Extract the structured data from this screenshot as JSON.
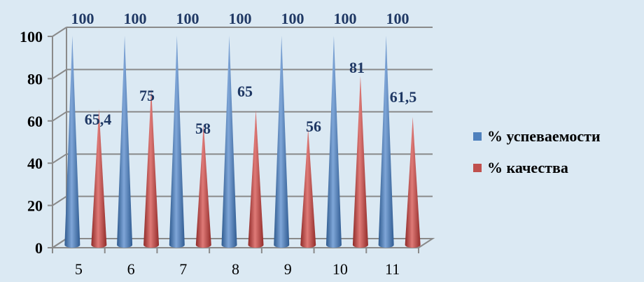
{
  "chart_data": {
    "type": "bar",
    "title": "",
    "xlabel": "",
    "ylabel": "",
    "categories": [
      "5",
      "6",
      "7",
      "8",
      "9",
      "10",
      "11"
    ],
    "ylim": [
      0,
      100
    ],
    "yticks": [
      0,
      20,
      40,
      60,
      80,
      100
    ],
    "grid": true,
    "legend_position": "right",
    "mark_shape": "cone",
    "series": [
      {
        "name": "% успеваемости",
        "color": "#4f81bd",
        "values": [
          100,
          100,
          100,
          100,
          100,
          100,
          100
        ],
        "labels": [
          "100",
          "100",
          "100",
          "100",
          "100",
          "100",
          "100"
        ]
      },
      {
        "name": "% качества",
        "color": "#c0504d",
        "values": [
          65.4,
          75,
          58,
          65,
          56,
          81,
          61.5
        ],
        "labels": [
          "65,4",
          "75",
          "58",
          "65",
          "56",
          "81",
          "61,5"
        ]
      }
    ]
  }
}
